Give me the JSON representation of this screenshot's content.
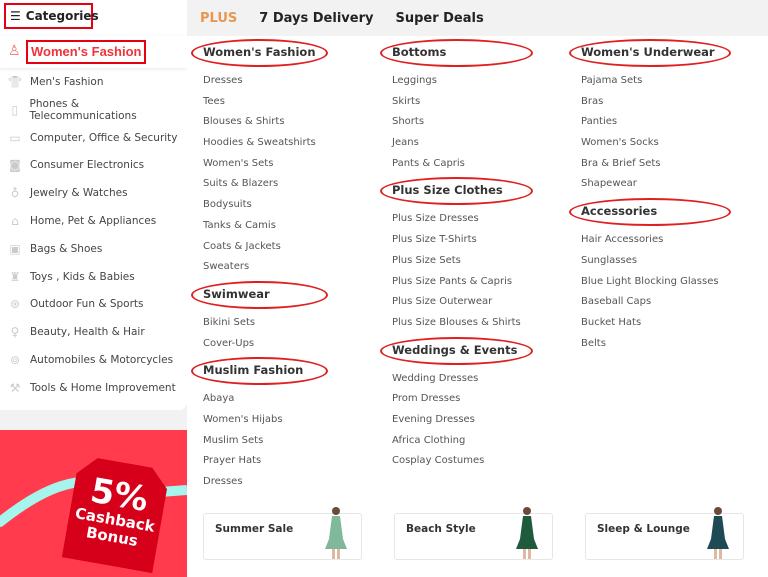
{
  "sidebar": {
    "title": "Categories",
    "active": "Women's Fashion",
    "items": [
      {
        "label": "Men's Fashion",
        "icon": "shirt-icon"
      },
      {
        "label": "Phones & Telecommunications",
        "icon": "phone-icon"
      },
      {
        "label": "Computer, Office & Security",
        "icon": "laptop-icon"
      },
      {
        "label": "Consumer Electronics",
        "icon": "camera-icon"
      },
      {
        "label": "Jewelry & Watches",
        "icon": "ring-icon"
      },
      {
        "label": "Home, Pet & Appliances",
        "icon": "sofa-icon"
      },
      {
        "label": "Bags & Shoes",
        "icon": "bag-icon"
      },
      {
        "label": "Toys , Kids & Babies",
        "icon": "toy-icon"
      },
      {
        "label": "Outdoor Fun & Sports",
        "icon": "ball-icon"
      },
      {
        "label": "Beauty, Health & Hair",
        "icon": "beauty-icon"
      },
      {
        "label": "Automobiles & Motorcycles",
        "icon": "wheel-icon"
      },
      {
        "label": "Tools & Home Improvement",
        "icon": "tools-icon"
      }
    ]
  },
  "topbar": {
    "plus": "PLUS",
    "delivery": "7 Days Delivery",
    "deals": "Super Deals"
  },
  "columns": [
    [
      {
        "title": "Women's Fashion",
        "links": [
          "Dresses",
          "Tees",
          "Blouses & Shirts",
          "Hoodies & Sweatshirts",
          "Women's Sets",
          "Suits & Blazers",
          "Bodysuits",
          "Tanks & Camis",
          "Coats & Jackets",
          "Sweaters"
        ]
      },
      {
        "title": "Swimwear",
        "links": [
          "Bikini Sets",
          "Cover-Ups"
        ]
      },
      {
        "title": "Muslim Fashion",
        "links": [
          "Abaya",
          "Women's Hijabs",
          "Muslim Sets",
          "Prayer Hats",
          "Dresses"
        ]
      }
    ],
    [
      {
        "title": "Bottoms",
        "links": [
          "Leggings",
          "Skirts",
          "Shorts",
          "Jeans",
          "Pants & Capris"
        ]
      },
      {
        "title": "Plus Size Clothes",
        "links": [
          "Plus Size Dresses",
          "Plus Size T-Shirts",
          "Plus Size Sets",
          "Plus Size Pants & Capris",
          "Plus Size Outerwear",
          "Plus Size Blouses & Shirts"
        ]
      },
      {
        "title": "Weddings & Events",
        "links": [
          "Wedding Dresses",
          "Prom Dresses",
          "Evening Dresses",
          "Africa Clothing",
          "Cosplay Costumes"
        ]
      }
    ],
    [
      {
        "title": "Women's Underwear",
        "links": [
          "Pajama Sets",
          "Bras",
          "Panties",
          "Women's Socks",
          "Bra & Brief Sets",
          "Shapewear"
        ]
      },
      {
        "title": "Accessories",
        "links": [
          "Hair Accessories",
          "Sunglasses",
          "Blue Light Blocking Glasses",
          "Baseball Caps",
          "Bucket Hats",
          "Belts"
        ]
      }
    ]
  ],
  "cards": [
    {
      "title": "Summer Sale",
      "color": "#7fb89a"
    },
    {
      "title": "Beach Style",
      "color": "#1f5a3c"
    },
    {
      "title": "Sleep & Lounge",
      "color": "#1d4a55"
    }
  ],
  "banner": {
    "percent": "5%",
    "line1": "Cashback",
    "line2": "Bonus"
  }
}
